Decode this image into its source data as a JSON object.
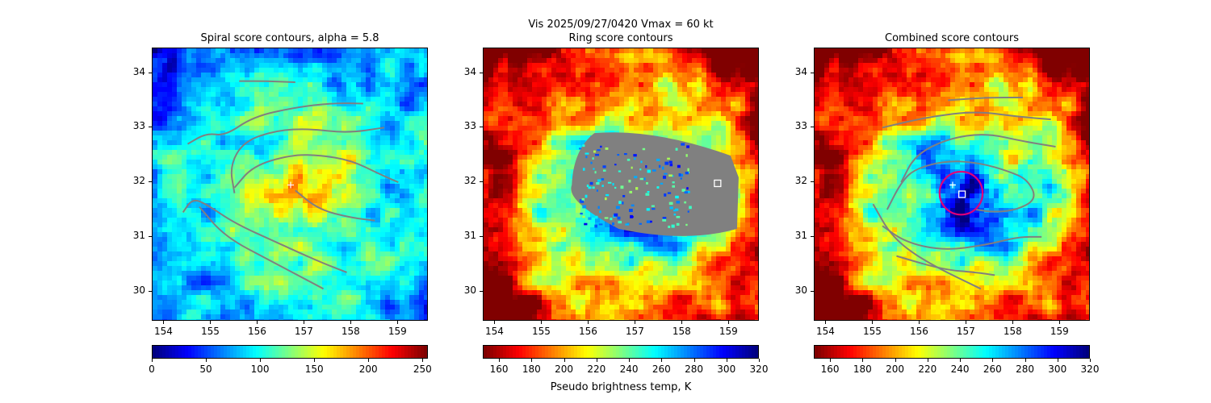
{
  "figure": {
    "suptitle": "Vis  2025/09/27/0420    Vmax = 60 kt",
    "colorbar_label": "Pseudo brightness temp, K"
  },
  "chart_data": [
    {
      "type": "heatmap",
      "title": "Spiral score contours, alpha =  5.8",
      "xlim": [
        153.75,
        159.65
      ],
      "ylim": [
        29.45,
        34.45
      ],
      "x_ticks": [
        "154",
        "155",
        "156",
        "157",
        "158",
        "159"
      ],
      "y_ticks": [
        "30",
        "31",
        "32",
        "33",
        "34"
      ],
      "colorbar": {
        "range": [
          0,
          255
        ],
        "ticks": [
          "0",
          "50",
          "100",
          "150",
          "200",
          "250"
        ],
        "reversed": false
      },
      "center_estimate": {
        "x": 156.7,
        "y": 31.95,
        "marker": "+"
      },
      "contours": [
        [
          [
            155.6,
            33.85
          ],
          [
            156.2,
            33.85
          ],
          [
            156.8,
            33.83
          ]
        ],
        [
          [
            154.5,
            32.7
          ],
          [
            154.9,
            32.9
          ],
          [
            155.3,
            32.85
          ],
          [
            155.9,
            33.2
          ],
          [
            156.8,
            33.37
          ],
          [
            157.6,
            33.45
          ],
          [
            158.25,
            33.44
          ]
        ],
        [
          [
            155.5,
            31.8
          ],
          [
            155.4,
            32.3
          ],
          [
            155.7,
            32.75
          ],
          [
            156.4,
            32.95
          ],
          [
            157.1,
            32.98
          ],
          [
            157.9,
            32.9
          ],
          [
            158.7,
            33.0
          ]
        ],
        [
          [
            155.5,
            31.9
          ],
          [
            155.9,
            32.3
          ],
          [
            156.7,
            32.5
          ],
          [
            157.3,
            32.5
          ],
          [
            158.0,
            32.4
          ],
          [
            158.6,
            32.15
          ],
          [
            159.0,
            32.0
          ]
        ],
        [
          [
            154.4,
            31.45
          ],
          [
            154.6,
            31.7
          ],
          [
            154.9,
            31.6
          ],
          [
            155.5,
            31.25
          ],
          [
            156.4,
            30.9
          ],
          [
            157.3,
            30.55
          ],
          [
            157.9,
            30.35
          ]
        ],
        [
          [
            154.75,
            31.55
          ],
          [
            155.3,
            31.0
          ],
          [
            156.3,
            30.55
          ],
          [
            157.4,
            30.05
          ]
        ],
        [
          [
            156.8,
            31.85
          ],
          [
            157.3,
            31.5
          ],
          [
            158.0,
            31.35
          ],
          [
            158.5,
            31.3
          ]
        ]
      ]
    },
    {
      "type": "heatmap",
      "title": "Ring score contours",
      "xlim": [
        153.75,
        159.65
      ],
      "ylim": [
        29.45,
        34.45
      ],
      "x_ticks": [
        "154",
        "155",
        "156",
        "157",
        "158",
        "159"
      ],
      "y_ticks": [
        "30",
        "31",
        "32",
        "33",
        "34"
      ],
      "colorbar": {
        "range": [
          150,
          320
        ],
        "ticks": [
          "160",
          "180",
          "200",
          "220",
          "240",
          "260",
          "280",
          "300",
          "320"
        ],
        "reversed": true
      },
      "ring_center": {
        "x": 158.75,
        "y": 31.98,
        "marker": "square"
      },
      "masked_region": {
        "x_range": [
          155.6,
          159.2
        ],
        "y_range": [
          31.0,
          32.9
        ]
      }
    },
    {
      "type": "heatmap",
      "title": "Combined score contours",
      "xlim": [
        153.75,
        159.65
      ],
      "ylim": [
        29.45,
        34.45
      ],
      "x_ticks": [
        "154",
        "155",
        "156",
        "157",
        "158",
        "159"
      ],
      "y_ticks": [
        "30",
        "31",
        "32",
        "33",
        "34"
      ],
      "colorbar": {
        "range": [
          150,
          320
        ],
        "ticks": [
          "160",
          "180",
          "200",
          "220",
          "240",
          "260",
          "280",
          "300",
          "320"
        ],
        "reversed": true
      },
      "center_estimate": {
        "x": 156.7,
        "y": 31.95,
        "marker": "+"
      },
      "combined_center": {
        "x": 156.9,
        "y": 31.78,
        "marker": "square"
      },
      "eye_circle": {
        "x": 156.88,
        "y": 31.8,
        "r_deg": 0.46
      },
      "contours": [
        [
          [
            156.6,
            33.5
          ],
          [
            157.4,
            33.55
          ],
          [
            158.2,
            33.55
          ]
        ],
        [
          [
            155.2,
            33.0
          ],
          [
            156.2,
            33.2
          ],
          [
            157.2,
            33.3
          ],
          [
            158.1,
            33.2
          ],
          [
            158.8,
            33.15
          ]
        ],
        [
          [
            155.6,
            32.0
          ],
          [
            155.9,
            32.5
          ],
          [
            156.6,
            32.8
          ],
          [
            157.4,
            32.9
          ],
          [
            158.2,
            32.75
          ],
          [
            158.9,
            32.65
          ]
        ],
        [
          [
            155.3,
            31.5
          ],
          [
            155.6,
            32.0
          ],
          [
            155.9,
            32.25
          ],
          [
            156.6,
            32.4
          ],
          [
            157.3,
            32.35
          ],
          [
            157.9,
            32.2
          ],
          [
            158.3,
            32.05
          ],
          [
            158.5,
            31.7
          ],
          [
            158.1,
            31.5
          ],
          [
            157.6,
            31.45
          ],
          [
            157.2,
            31.5
          ]
        ],
        [
          [
            155.2,
            31.2
          ],
          [
            155.7,
            30.9
          ],
          [
            156.5,
            30.75
          ],
          [
            157.4,
            30.85
          ],
          [
            158.1,
            31.0
          ],
          [
            158.6,
            31.0
          ]
        ],
        [
          [
            155.0,
            31.6
          ],
          [
            155.4,
            31.0
          ],
          [
            156.1,
            30.55
          ],
          [
            157.3,
            30.05
          ]
        ],
        [
          [
            155.5,
            30.65
          ],
          [
            156.5,
            30.4
          ],
          [
            157.2,
            30.35
          ],
          [
            157.6,
            30.3
          ]
        ]
      ]
    }
  ]
}
